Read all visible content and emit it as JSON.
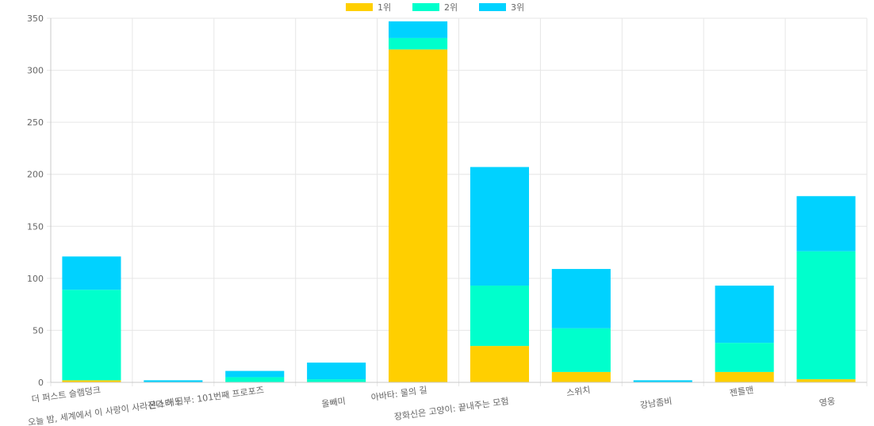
{
  "chart_data": {
    "type": "bar",
    "stacked": true,
    "categories": [
      "더 퍼스트 슬램덩크",
      "오늘 밤, 세계에서 이 사랑이 사라진다 해도",
      "몬스터 신부: 101번째 프로포즈",
      "올빼미",
      "아바타: 물의 길",
      "장화신은 고양이: 끝내주는 모험",
      "스위치",
      "강남좀비",
      "젠틀맨",
      "영웅"
    ],
    "series": [
      {
        "name": "1위",
        "color": "#ffcf00",
        "values": [
          2,
          0,
          0,
          0,
          320,
          35,
          10,
          0,
          10,
          3
        ]
      },
      {
        "name": "2위",
        "color": "#00ffcc",
        "values": [
          87,
          0,
          5,
          3,
          11,
          58,
          42,
          0,
          28,
          123
        ]
      },
      {
        "name": "3위",
        "color": "#00d2ff",
        "values": [
          32,
          2,
          6,
          16,
          16,
          114,
          57,
          2,
          55,
          53
        ]
      }
    ],
    "ylim": [
      0,
      350
    ],
    "yticks": [
      0,
      50,
      100,
      150,
      200,
      250,
      300,
      350
    ],
    "grid": true,
    "legend_position": "top-center",
    "title": "",
    "xlabel": "",
    "ylabel": ""
  }
}
